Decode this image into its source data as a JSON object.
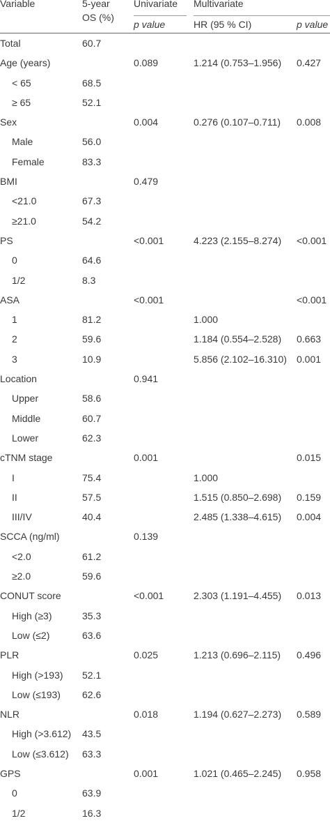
{
  "header": {
    "variable": "Variable",
    "os_line1": "5-year",
    "os_line2": "OS (%)",
    "univariate": "Univariate",
    "multivariate": "Multivariate",
    "uni_p": "p value",
    "hr": "HR (95 % CI)",
    "multi_p": "p value"
  },
  "rows": [
    {
      "variable": "Total",
      "indent": false,
      "os": "60.7",
      "uni_p": "",
      "hr": "",
      "multi_p": ""
    },
    {
      "variable": "Age (years)",
      "indent": false,
      "os": "",
      "uni_p": "0.089",
      "hr": "1.214 (0.753–1.956)",
      "multi_p": "0.427"
    },
    {
      "variable": "< 65",
      "indent": true,
      "os": "68.5",
      "uni_p": "",
      "hr": "",
      "multi_p": ""
    },
    {
      "variable": "≥ 65",
      "indent": true,
      "os": "52.1",
      "uni_p": "",
      "hr": "",
      "multi_p": ""
    },
    {
      "variable": "Sex",
      "indent": false,
      "os": "",
      "uni_p": "0.004",
      "hr": "0.276 (0.107–0.711)",
      "multi_p": "0.008"
    },
    {
      "variable": "Male",
      "indent": true,
      "os": "56.0",
      "uni_p": "",
      "hr": "",
      "multi_p": ""
    },
    {
      "variable": "Female",
      "indent": true,
      "os": "83.3",
      "uni_p": "",
      "hr": "",
      "multi_p": ""
    },
    {
      "variable": "BMI",
      "indent": false,
      "os": "",
      "uni_p": "0.479",
      "hr": "",
      "multi_p": ""
    },
    {
      "variable": "<21.0",
      "indent": true,
      "os": "67.3",
      "uni_p": "",
      "hr": "",
      "multi_p": ""
    },
    {
      "variable": "≥21.0",
      "indent": true,
      "os": "54.2",
      "uni_p": "",
      "hr": "",
      "multi_p": ""
    },
    {
      "variable": "PS",
      "indent": false,
      "os": "",
      "uni_p": "<0.001",
      "hr": "4.223 (2.155–8.274)",
      "multi_p": "<0.001"
    },
    {
      "variable": "0",
      "indent": true,
      "os": "64.6",
      "uni_p": "",
      "hr": "",
      "multi_p": ""
    },
    {
      "variable": "1/2",
      "indent": true,
      "os": "8.3",
      "uni_p": "",
      "hr": "",
      "multi_p": ""
    },
    {
      "variable": "ASA",
      "indent": false,
      "os": "",
      "uni_p": "<0.001",
      "hr": "",
      "multi_p": "<0.001"
    },
    {
      "variable": "1",
      "indent": true,
      "os": "81.2",
      "uni_p": "",
      "hr": "1.000",
      "multi_p": ""
    },
    {
      "variable": "2",
      "indent": true,
      "os": "59.6",
      "uni_p": "",
      "hr": "1.184 (0.554–2.528)",
      "multi_p": "0.663"
    },
    {
      "variable": "3",
      "indent": true,
      "os": "10.9",
      "uni_p": "",
      "hr": "5.856 (2.102–16.310)",
      "multi_p": "0.001"
    },
    {
      "variable": "Location",
      "indent": false,
      "os": "",
      "uni_p": "0.941",
      "hr": "",
      "multi_p": ""
    },
    {
      "variable": "Upper",
      "indent": true,
      "os": "58.6",
      "uni_p": "",
      "hr": "",
      "multi_p": ""
    },
    {
      "variable": "Middle",
      "indent": true,
      "os": "60.7",
      "uni_p": "",
      "hr": "",
      "multi_p": ""
    },
    {
      "variable": "Lower",
      "indent": true,
      "os": "62.3",
      "uni_p": "",
      "hr": "",
      "multi_p": ""
    },
    {
      "variable": "cTNM stage",
      "indent": false,
      "os": "",
      "uni_p": "0.001",
      "hr": "",
      "multi_p": "0.015"
    },
    {
      "variable": "I",
      "indent": true,
      "os": "75.4",
      "uni_p": "",
      "hr": "1.000",
      "multi_p": ""
    },
    {
      "variable": "II",
      "indent": true,
      "os": "57.5",
      "uni_p": "",
      "hr": "1.515 (0.850–2.698)",
      "multi_p": "0.159"
    },
    {
      "variable": "III/IV",
      "indent": true,
      "os": "40.4",
      "uni_p": "",
      "hr": "2.485 (1.338–4.615)",
      "multi_p": "0.004"
    },
    {
      "variable": "SCCA (ng/ml)",
      "indent": false,
      "os": "",
      "uni_p": "0.139",
      "hr": "",
      "multi_p": ""
    },
    {
      "variable": "<2.0",
      "indent": true,
      "os": "61.2",
      "uni_p": "",
      "hr": "",
      "multi_p": ""
    },
    {
      "variable": "≥2.0",
      "indent": true,
      "os": "59.6",
      "uni_p": "",
      "hr": "",
      "multi_p": ""
    },
    {
      "variable": "CONUT score",
      "indent": false,
      "os": "",
      "uni_p": "<0.001",
      "hr": "2.303 (1.191–4.455)",
      "multi_p": "0.013"
    },
    {
      "variable": "High (≥3)",
      "indent": true,
      "os": "35.3",
      "uni_p": "",
      "hr": "",
      "multi_p": ""
    },
    {
      "variable": "Low (≤2)",
      "indent": true,
      "os": "63.6",
      "uni_p": "",
      "hr": "",
      "multi_p": ""
    },
    {
      "variable": "PLR",
      "indent": false,
      "os": "",
      "uni_p": "0.025",
      "hr": "1.213 (0.696–2.115)",
      "multi_p": "0.496"
    },
    {
      "variable": "High (>193)",
      "indent": true,
      "os": "52.1",
      "uni_p": "",
      "hr": "",
      "multi_p": ""
    },
    {
      "variable": "Low (≤193)",
      "indent": true,
      "os": "62.6",
      "uni_p": "",
      "hr": "",
      "multi_p": ""
    },
    {
      "variable": "NLR",
      "indent": false,
      "os": "",
      "uni_p": "0.018",
      "hr": "1.194 (0.627–2.273)",
      "multi_p": "0.589"
    },
    {
      "variable": "High (>3.612)",
      "indent": true,
      "os": "43.5",
      "uni_p": "",
      "hr": "",
      "multi_p": ""
    },
    {
      "variable": "Low (≤3.612)",
      "indent": true,
      "os": "63.3",
      "uni_p": "",
      "hr": "",
      "multi_p": ""
    },
    {
      "variable": "GPS",
      "indent": false,
      "os": "",
      "uni_p": "0.001",
      "hr": "1.021 (0.465–2.245)",
      "multi_p": "0.958"
    },
    {
      "variable": "0",
      "indent": true,
      "os": "63.9",
      "uni_p": "",
      "hr": "",
      "multi_p": ""
    },
    {
      "variable": "1/2",
      "indent": true,
      "os": "16.3",
      "uni_p": "",
      "hr": "",
      "multi_p": ""
    }
  ]
}
